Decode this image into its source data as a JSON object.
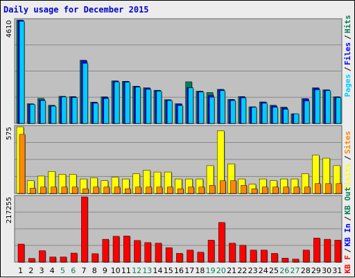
{
  "title": "Daily usage for December 2015",
  "colors": {
    "pages": "#00ccff",
    "files": "#0000ff",
    "hits": "#007f55",
    "visits": "#ffff00",
    "sites": "#ff8800",
    "kbin": "#0000ff",
    "kbout": "#007f55",
    "kbf": "#ff0000",
    "weekend": "#00805a",
    "weekday": "#000000"
  },
  "chart_data": [
    {
      "type": "bar",
      "name": "hits-files-pages",
      "ymax_label": "4610",
      "ylim": [
        0,
        4610
      ],
      "legend": [
        {
          "label": "Pages",
          "color": "#00ccff"
        },
        {
          "label": "Files",
          "color": "#0000ff"
        },
        {
          "label": "Hits",
          "color": "#007f55"
        }
      ],
      "series": [
        {
          "name": "Hits",
          "values": [
            4610,
            880,
            1120,
            810,
            1210,
            1200,
            2820,
            950,
            1190,
            1900,
            1880,
            1660,
            1590,
            1480,
            1060,
            880,
            1860,
            1440,
            1380,
            1520,
            1070,
            1200,
            740,
            960,
            810,
            730,
            430,
            1110,
            1590,
            1500,
            1190
          ]
        },
        {
          "name": "Files",
          "values": [
            4600,
            860,
            1050,
            790,
            1200,
            1180,
            2800,
            940,
            1170,
            1890,
            1870,
            1650,
            1580,
            1470,
            1050,
            870,
            1600,
            1430,
            1250,
            1510,
            1060,
            1180,
            740,
            950,
            780,
            690,
            430,
            1100,
            1580,
            1490,
            1180
          ]
        },
        {
          "name": "Pages",
          "values": [
            4560,
            850,
            1020,
            770,
            1180,
            1150,
            2680,
            900,
            1110,
            1850,
            1840,
            1620,
            1520,
            1440,
            1020,
            800,
            1590,
            1400,
            1170,
            1460,
            1020,
            1140,
            720,
            900,
            720,
            630,
            430,
            1000,
            1500,
            1460,
            1150
          ]
        }
      ]
    },
    {
      "type": "bar",
      "name": "visits-sites",
      "ymax_label": "575",
      "ylim": [
        0,
        575
      ],
      "legend": [
        {
          "label": "Visits",
          "color": "#ffff00"
        },
        {
          "label": "Sites",
          "color": "#ff8800"
        }
      ],
      "series": [
        {
          "name": "Visits",
          "values": [
            575,
            110,
            150,
            190,
            165,
            165,
            125,
            135,
            110,
            140,
            125,
            170,
            200,
            185,
            185,
            125,
            125,
            125,
            240,
            540,
            255,
            125,
            80,
            125,
            110,
            125,
            125,
            170,
            330,
            305,
            240
          ]
        },
        {
          "name": "Sites",
          "values": [
            510,
            45,
            55,
            55,
            55,
            55,
            40,
            55,
            55,
            55,
            40,
            55,
            55,
            55,
            55,
            40,
            55,
            55,
            70,
            110,
            110,
            70,
            40,
            55,
            55,
            55,
            55,
            55,
            85,
            85,
            85
          ]
        }
      ]
    },
    {
      "type": "bar",
      "name": "kbytes",
      "ymax_label": "217255",
      "ylim": [
        0,
        217255
      ],
      "legend": [
        {
          "label": "KB F",
          "color": "#ff0000"
        },
        {
          "label": "KB In",
          "color": "#0000ff"
        },
        {
          "label": "KB Out",
          "color": "#007f55"
        }
      ],
      "series": [
        {
          "name": "KB F",
          "values": [
            60000,
            12000,
            38000,
            17000,
            17000,
            30000,
            217255,
            28000,
            76000,
            86000,
            87000,
            72000,
            65000,
            63000,
            48000,
            29000,
            40000,
            33000,
            73000,
            132000,
            63000,
            56000,
            40000,
            40000,
            29000,
            13000,
            10000,
            40000,
            80000,
            76000,
            73000
          ]
        }
      ]
    }
  ],
  "x_labels": [
    "1",
    "2",
    "3",
    "4",
    "5",
    "6",
    "7",
    "8",
    "9",
    "10",
    "11",
    "12",
    "13",
    "14",
    "15",
    "16",
    "17",
    "18",
    "19",
    "20",
    "21",
    "22",
    "23",
    "24",
    "25",
    "26",
    "27",
    "28",
    "29",
    "30",
    "31"
  ],
  "weekend_days": [
    5,
    6,
    12,
    13,
    19,
    20,
    26,
    27
  ]
}
